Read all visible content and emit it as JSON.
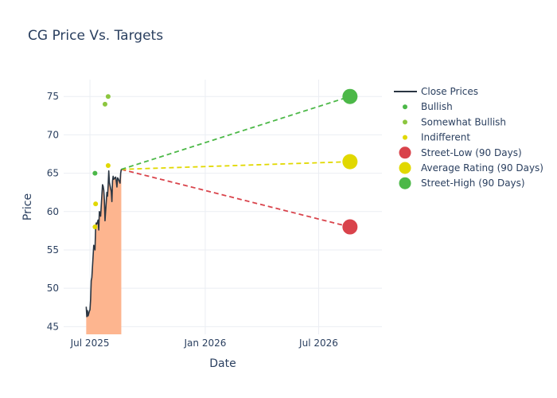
{
  "chart_data": {
    "type": "line",
    "title": "CG Price Vs. Targets",
    "xlabel": "Date",
    "ylabel": "Price",
    "x_range": [
      "2025-05-20",
      "2026-10-10"
    ],
    "ylim": [
      44,
      77.2
    ],
    "x_ticks": [
      {
        "date": "2025-07-01",
        "label": "Jul 2025"
      },
      {
        "date": "2026-01-01",
        "label": "Jan 2026"
      },
      {
        "date": "2026-07-01",
        "label": "Jul 2026"
      }
    ],
    "y_ticks": [
      45,
      50,
      55,
      60,
      65,
      70,
      75
    ],
    "grid": true,
    "legend_position": "right",
    "series": [
      {
        "name": "Close Prices",
        "kind": "line-area",
        "color": "#2a3542",
        "fill_color": "#fdb58f",
        "points": [
          [
            "2025-06-25",
            47.6
          ],
          [
            "2025-06-26",
            46.3
          ],
          [
            "2025-06-27",
            47.1
          ],
          [
            "2025-06-28",
            46.4
          ],
          [
            "2025-06-30",
            47.0
          ],
          [
            "2025-07-01",
            47.2
          ],
          [
            "2025-07-02",
            48.5
          ],
          [
            "2025-07-03",
            51.0
          ],
          [
            "2025-07-04",
            51.4
          ],
          [
            "2025-07-07",
            55.6
          ],
          [
            "2025-07-08",
            55.4
          ],
          [
            "2025-07-09",
            55.0
          ],
          [
            "2025-07-10",
            57.8
          ],
          [
            "2025-07-11",
            58.5
          ],
          [
            "2025-07-12",
            58.4
          ],
          [
            "2025-07-14",
            58.9
          ],
          [
            "2025-07-15",
            57.6
          ],
          [
            "2025-07-16",
            60.0
          ],
          [
            "2025-07-17",
            59.8
          ],
          [
            "2025-07-18",
            59.4
          ],
          [
            "2025-07-21",
            63.5
          ],
          [
            "2025-07-22",
            63.3
          ],
          [
            "2025-07-23",
            62.8
          ],
          [
            "2025-07-24",
            61.5
          ],
          [
            "2025-07-25",
            58.8
          ],
          [
            "2025-07-28",
            62.5
          ],
          [
            "2025-07-29",
            62.0
          ],
          [
            "2025-07-30",
            63.4
          ],
          [
            "2025-07-31",
            65.3
          ],
          [
            "2025-08-01",
            63.8
          ],
          [
            "2025-08-04",
            62.6
          ],
          [
            "2025-08-05",
            61.3
          ],
          [
            "2025-08-06",
            64.0
          ],
          [
            "2025-08-07",
            64.6
          ],
          [
            "2025-08-08",
            64.2
          ],
          [
            "2025-08-11",
            64.5
          ],
          [
            "2025-08-12",
            63.9
          ],
          [
            "2025-08-13",
            63.2
          ],
          [
            "2025-08-14",
            64.4
          ],
          [
            "2025-08-15",
            64.3
          ],
          [
            "2025-08-18",
            63.7
          ],
          [
            "2025-08-19",
            65.0
          ],
          [
            "2025-08-20",
            65.5
          ]
        ]
      },
      {
        "name": "Bullish",
        "kind": "markers",
        "color": "#4cb848",
        "points": [
          [
            "2025-07-09",
            65.0
          ]
        ]
      },
      {
        "name": "Somewhat Bullish",
        "kind": "markers",
        "color": "#8cc63f",
        "points": [
          [
            "2025-07-25",
            74.0
          ],
          [
            "2025-07-30",
            75.0
          ]
        ]
      },
      {
        "name": "Indifferent",
        "kind": "markers",
        "color": "#e1d800",
        "points": [
          [
            "2025-07-09",
            58.0
          ],
          [
            "2025-07-10",
            61.0
          ],
          [
            "2025-07-30",
            66.0
          ]
        ]
      },
      {
        "name": "Street-Low (90 Days)",
        "kind": "target",
        "color": "#d9434b",
        "points": [
          [
            "2025-08-20",
            65.5
          ],
          [
            "2026-08-20",
            58.0
          ]
        ]
      },
      {
        "name": "Average Rating (90 Days)",
        "kind": "target",
        "color": "#e1d800",
        "points": [
          [
            "2025-08-20",
            65.5
          ],
          [
            "2026-08-20",
            66.5
          ]
        ]
      },
      {
        "name": "Street-High (90 Days)",
        "kind": "target",
        "color": "#4cb848",
        "points": [
          [
            "2025-08-20",
            65.5
          ],
          [
            "2026-08-20",
            75.0
          ]
        ]
      }
    ]
  }
}
